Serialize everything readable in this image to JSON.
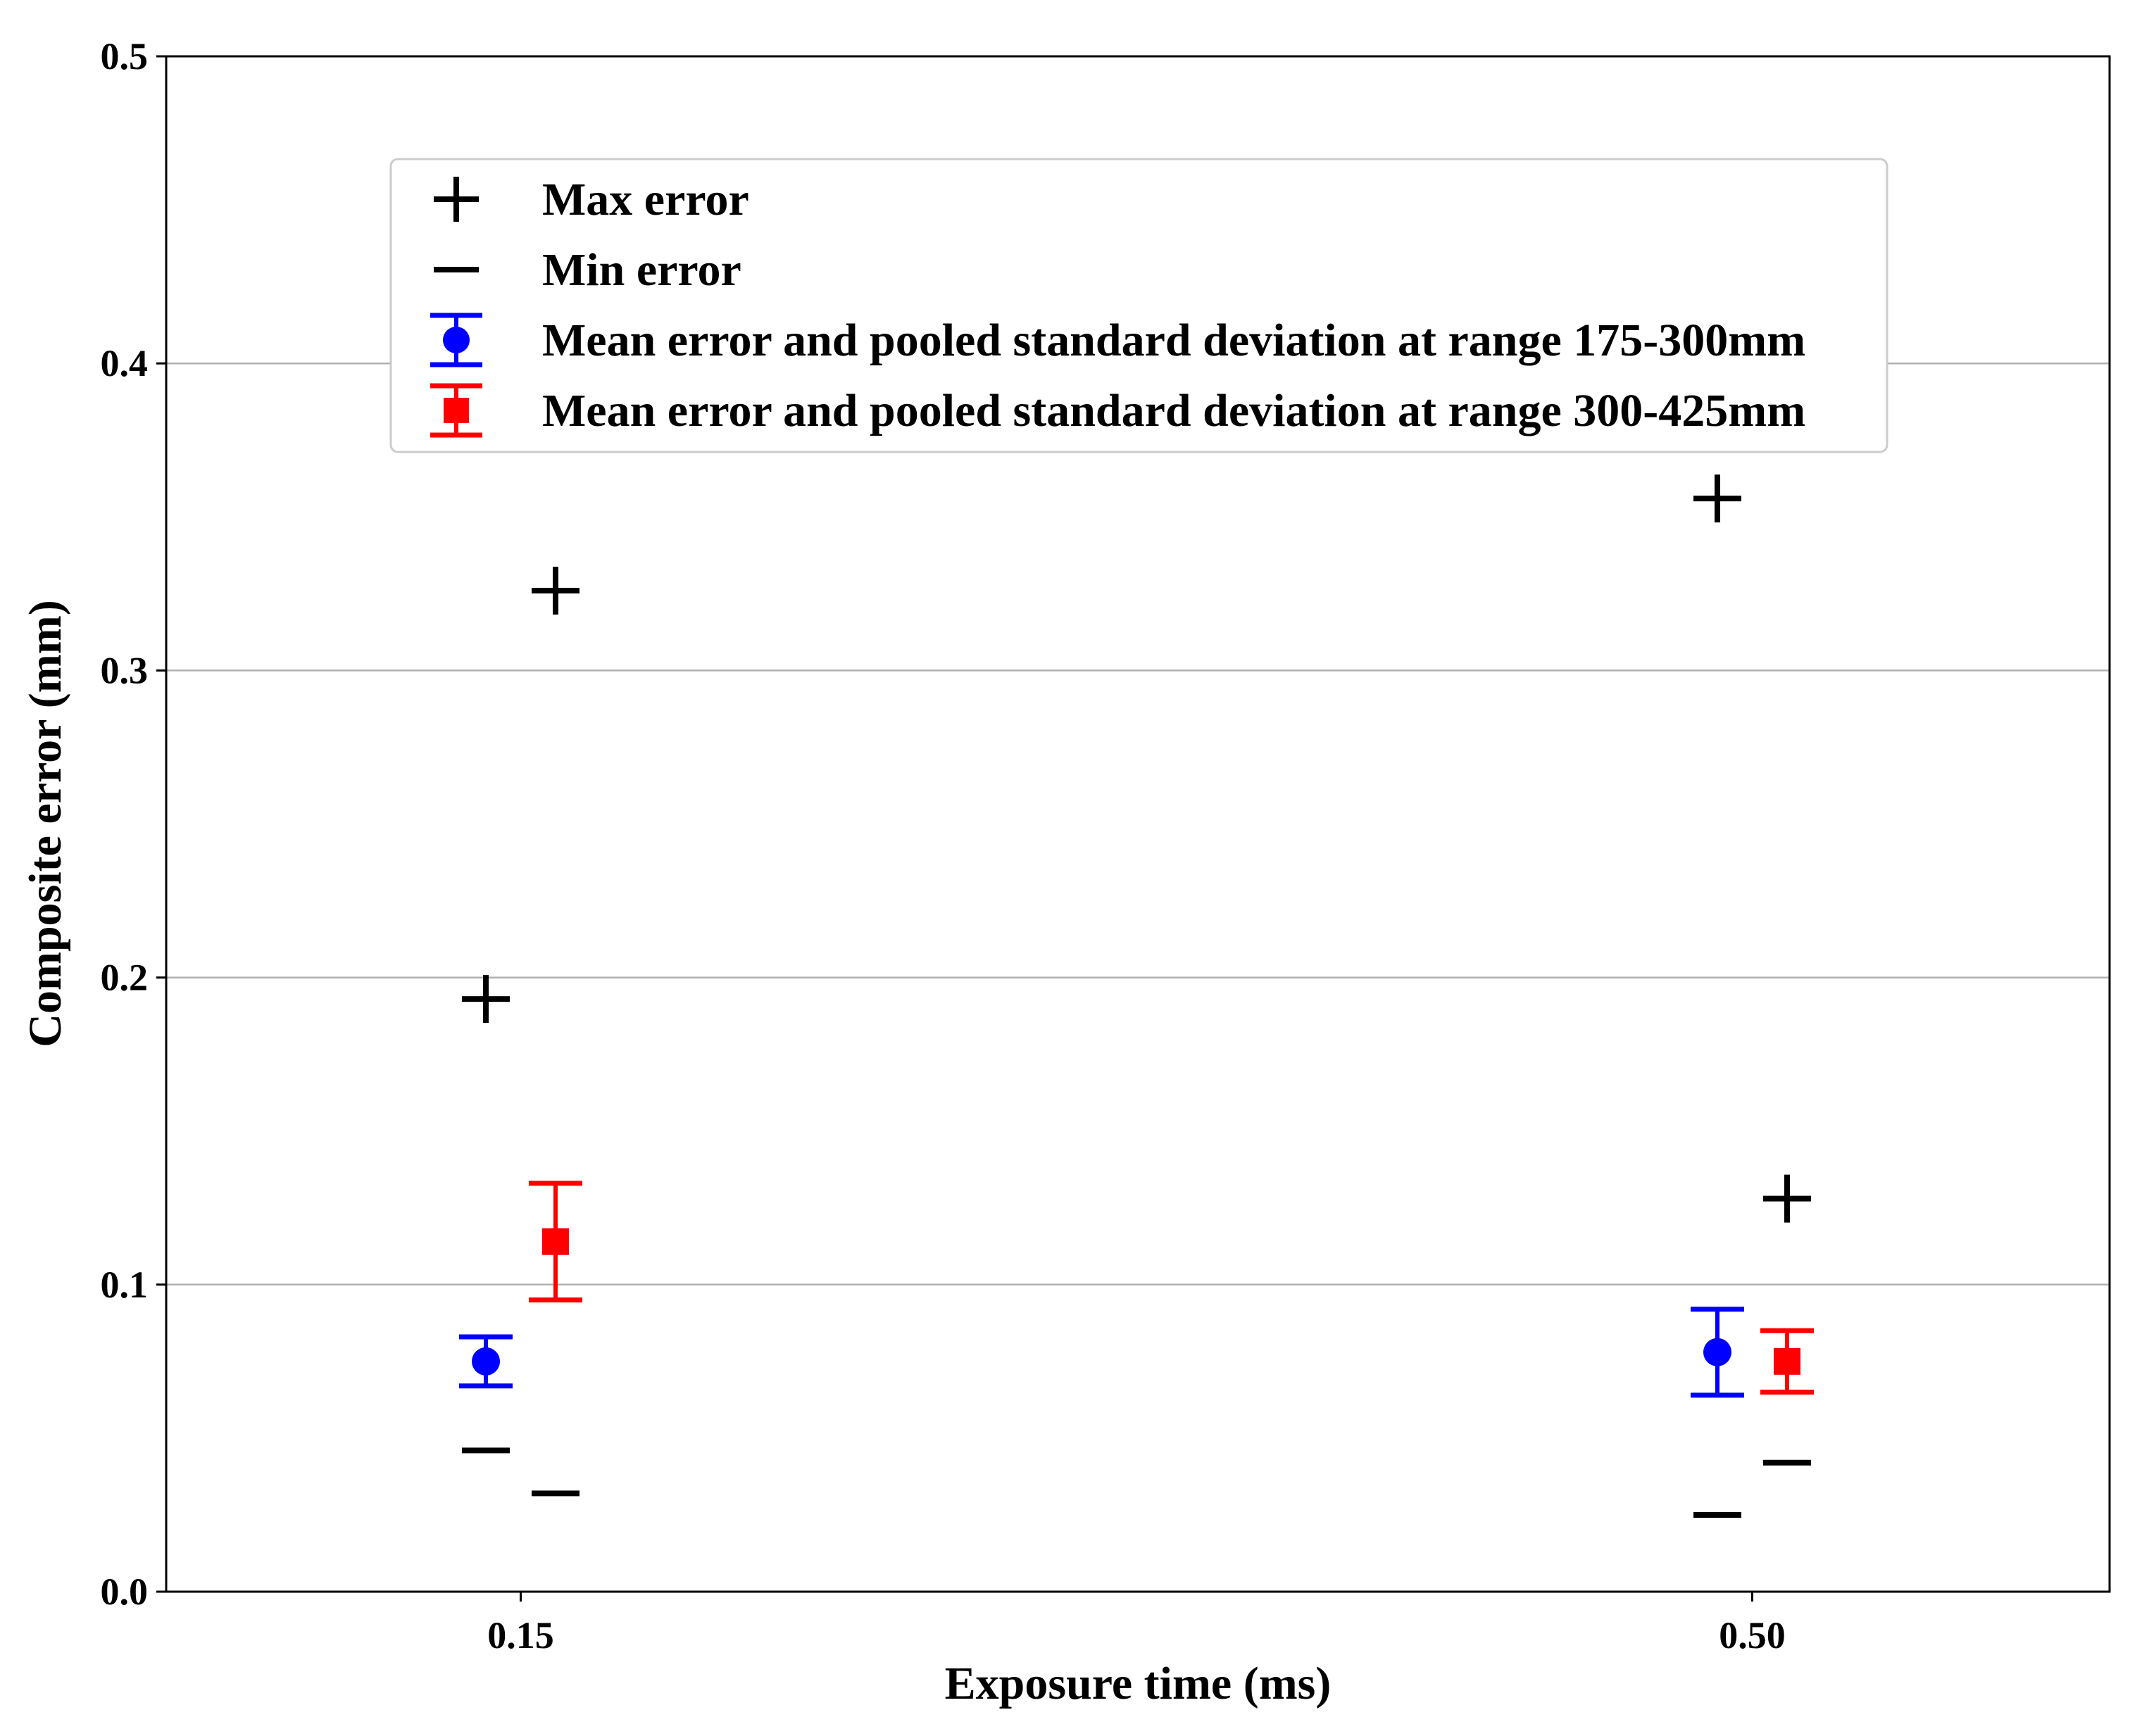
{
  "chart_data": {
    "type": "scatter",
    "xlabel": "Exposure time (ms)",
    "ylabel": "Composite error (mm)",
    "categories": [
      "0.15",
      "0.50"
    ],
    "ylim": [
      0.0,
      0.5
    ],
    "yticks": [
      "0.0",
      "0.1",
      "0.2",
      "0.3",
      "0.4",
      "0.5"
    ],
    "grid": "horizontal",
    "legend_position": "top-center",
    "series": [
      {
        "name": "Max error",
        "marker": "plus",
        "color": "#000000",
        "points": [
          {
            "category": "0.15",
            "group": "range 175-300mm",
            "value": 0.193
          },
          {
            "category": "0.15",
            "group": "range 300-425mm",
            "value": 0.326
          },
          {
            "category": "0.50",
            "group": "range 175-300mm",
            "value": 0.356
          },
          {
            "category": "0.50",
            "group": "range 300-425mm",
            "value": 0.128
          }
        ]
      },
      {
        "name": "Min error",
        "marker": "minus",
        "color": "#000000",
        "points": [
          {
            "category": "0.15",
            "group": "range 175-300mm",
            "value": 0.046
          },
          {
            "category": "0.15",
            "group": "range 300-425mm",
            "value": 0.032
          },
          {
            "category": "0.50",
            "group": "range 175-300mm",
            "value": 0.025
          },
          {
            "category": "0.50",
            "group": "range 300-425mm",
            "value": 0.042
          }
        ]
      },
      {
        "name": "Mean error and pooled standard deviation at range 175-300mm",
        "marker": "circle",
        "color": "#0000ff",
        "points": [
          {
            "category": "0.15",
            "mean": 0.075,
            "sd": 0.008
          },
          {
            "category": "0.50",
            "mean": 0.078,
            "sd": 0.014
          }
        ]
      },
      {
        "name": "Mean error and pooled standard deviation at range 300-425mm",
        "marker": "square",
        "color": "#ff0000",
        "points": [
          {
            "category": "0.15",
            "mean": 0.114,
            "sd": 0.019
          },
          {
            "category": "0.50",
            "mean": 0.075,
            "sd": 0.01
          }
        ]
      }
    ]
  }
}
